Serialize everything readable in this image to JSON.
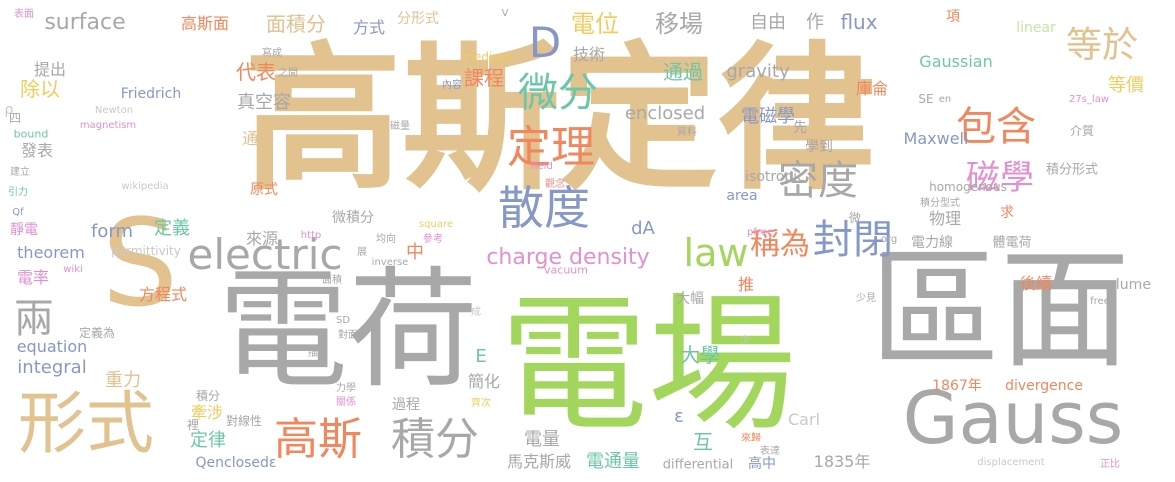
{
  "palette": {
    "tan": "#e2c28f",
    "gray": "#a8a8a8",
    "green": "#a3d65c",
    "blue": "#8698c6",
    "orange": "#f2875d",
    "teal": "#6cc7a9",
    "pink": "#e38fd0",
    "yellow": "#f3cc5e",
    "red": "#ef8b8b",
    "lgray": "#c9c9c9",
    "lgreen": "#c6e6a0"
  },
  "words": [
    {
      "text": "高斯定律",
      "color": "tan"
    },
    {
      "text": "電場",
      "color": "green"
    },
    {
      "text": "電荷",
      "color": "gray"
    },
    {
      "text": "區面",
      "color": "gray"
    },
    {
      "text": "S",
      "color": "tan"
    },
    {
      "text": "Gauss",
      "color": "gray"
    },
    {
      "text": "形式",
      "color": "tan"
    },
    {
      "text": "electric",
      "color": "gray"
    },
    {
      "text": "law",
      "color": "green"
    },
    {
      "text": "散度",
      "color": "blue"
    },
    {
      "text": "定理",
      "color": "orange"
    },
    {
      "text": "微分",
      "color": "teal"
    },
    {
      "text": "D",
      "color": "blue"
    },
    {
      "text": "密度",
      "color": "gray"
    },
    {
      "text": "封閉",
      "color": "blue"
    },
    {
      "text": "包含",
      "color": "orange"
    },
    {
      "text": "磁學",
      "color": "pink"
    },
    {
      "text": "等於",
      "color": "tan"
    },
    {
      "text": "高斯",
      "color": "orange"
    },
    {
      "text": "積分",
      "color": "gray"
    },
    {
      "text": "charge density",
      "color": "pink"
    },
    {
      "text": "稱為",
      "color": "orange"
    },
    {
      "text": "電位",
      "color": "yellow"
    },
    {
      "text": "移場",
      "color": "gray"
    },
    {
      "text": "兩",
      "color": "gray"
    },
    {
      "text": "surface",
      "color": "gray"
    },
    {
      "text": "高斯面",
      "color": "orange"
    },
    {
      "text": "面積分",
      "color": "tan"
    },
    {
      "text": "方式",
      "color": "blue"
    },
    {
      "text": "分形式",
      "color": "tan"
    },
    {
      "text": "技術",
      "color": "gray"
    },
    {
      "text": "自由",
      "color": "gray"
    },
    {
      "text": "作",
      "color": "gray"
    },
    {
      "text": "flux",
      "color": "blue"
    },
    {
      "text": "項",
      "color": "orange"
    },
    {
      "text": "linear",
      "color": "lgreen"
    },
    {
      "text": "Gaussian",
      "color": "teal"
    },
    {
      "text": "等價",
      "color": "yellow"
    },
    {
      "text": "庫侖",
      "color": "orange"
    },
    {
      "text": "通過",
      "color": "teal"
    },
    {
      "text": "gravity",
      "color": "gray"
    },
    {
      "text": "課程",
      "color": "orange"
    },
    {
      "text": "電磁學",
      "color": "blue"
    },
    {
      "text": "Maxwell",
      "color": "blue"
    },
    {
      "text": "介質",
      "color": "gray"
    },
    {
      "text": "先",
      "color": "gray"
    },
    {
      "text": "學到",
      "color": "gray"
    },
    {
      "text": "積分形式",
      "color": "gray"
    },
    {
      "text": "enclosed",
      "color": "gray"
    },
    {
      "text": "代表",
      "color": "orange"
    },
    {
      "text": "真空容",
      "color": "gray"
    },
    {
      "text": "除以",
      "color": "yellow"
    },
    {
      "text": "提出",
      "color": "gray"
    },
    {
      "text": "Friedrich",
      "color": "blue"
    },
    {
      "text": "通量",
      "color": "tan"
    },
    {
      "text": "發表",
      "color": "gray"
    },
    {
      "text": "form",
      "color": "blue"
    },
    {
      "text": "定義",
      "color": "teal"
    },
    {
      "text": "theorem",
      "color": "blue"
    },
    {
      "text": "電率",
      "color": "pink"
    },
    {
      "text": "來源",
      "color": "gray"
    },
    {
      "text": "微積分",
      "color": "gray"
    },
    {
      "text": "原式",
      "color": "orange"
    },
    {
      "text": "物理",
      "color": "gray"
    },
    {
      "text": "求",
      "color": "orange"
    },
    {
      "text": "電力線",
      "color": "gray"
    },
    {
      "text": "體電荷",
      "color": "gray"
    },
    {
      "text": "homogenous",
      "color": "gray"
    },
    {
      "text": "isotropic",
      "color": "gray"
    },
    {
      "text": "area",
      "color": "blue"
    },
    {
      "text": "dA",
      "color": "blue"
    },
    {
      "text": "中",
      "color": "orange"
    },
    {
      "text": "推",
      "color": "orange"
    },
    {
      "text": "大學",
      "color": "teal"
    },
    {
      "text": "大幅",
      "color": "gray"
    },
    {
      "text": "後續",
      "color": "orange"
    },
    {
      "text": "volume",
      "color": "gray"
    },
    {
      "text": "equation",
      "color": "blue"
    },
    {
      "text": "integral",
      "color": "blue"
    },
    {
      "text": "方程式",
      "color": "orange"
    },
    {
      "text": "定義為",
      "color": "gray"
    },
    {
      "text": "重力",
      "color": "tan"
    },
    {
      "text": "E",
      "color": "teal"
    },
    {
      "text": "簡化",
      "color": "gray"
    },
    {
      "text": "1867年",
      "color": "orange"
    },
    {
      "text": "divergence",
      "color": "orange"
    },
    {
      "text": "積分",
      "color": "gray"
    },
    {
      "text": "牽涉",
      "color": "yellow"
    },
    {
      "text": "定律",
      "color": "teal"
    },
    {
      "text": "電量",
      "color": "gray"
    },
    {
      "text": "過程",
      "color": "gray"
    },
    {
      "text": "ε",
      "color": "blue"
    },
    {
      "text": "互",
      "color": "teal"
    },
    {
      "text": "Carl",
      "color": "lgray"
    },
    {
      "text": "電通量",
      "color": "teal"
    },
    {
      "text": "馬克斯威",
      "color": "gray"
    },
    {
      "text": "Qenclosedε",
      "color": "blue"
    },
    {
      "text": "differential",
      "color": "gray"
    },
    {
      "text": "高中",
      "color": "blue"
    },
    {
      "text": "1835年",
      "color": "gray"
    },
    {
      "text": "裡",
      "color": "gray"
    },
    {
      "text": "對線性",
      "color": "gray"
    },
    {
      "text": "表面",
      "color": "pink"
    },
    {
      "text": "寫成",
      "color": "gray"
    },
    {
      "text": "medium",
      "color": "yellow"
    },
    {
      "text": "之間",
      "color": "gray"
    },
    {
      "text": "內容",
      "color": "blue"
    },
    {
      "text": "Newton",
      "color": "lgray"
    },
    {
      "text": "magnetism",
      "color": "pink"
    },
    {
      "text": "四",
      "color": "gray"
    },
    {
      "text": "bound",
      "color": "teal"
    },
    {
      "text": "ρ",
      "color": "lgray"
    },
    {
      "text": "建立",
      "color": "gray"
    },
    {
      "text": "引力",
      "color": "teal"
    },
    {
      "text": "Qf",
      "color": "blue"
    },
    {
      "text": "靜電",
      "color": "pink"
    },
    {
      "text": "permittivity",
      "color": "lgray"
    },
    {
      "text": "wiki",
      "color": "pink"
    },
    {
      "text": "wikipedia",
      "color": "lgray"
    },
    {
      "text": "http",
      "color": "pink"
    },
    {
      "text": "參考",
      "color": "pink"
    },
    {
      "text": "均向",
      "color": "gray"
    },
    {
      "text": "inverse",
      "color": "gray"
    },
    {
      "text": "square",
      "color": "yellow"
    },
    {
      "text": "vacuum",
      "color": "pink"
    },
    {
      "text": "面積",
      "color": "gray"
    },
    {
      "text": "field",
      "color": "pink"
    },
    {
      "text": "觀念",
      "color": "red"
    },
    {
      "text": "資料",
      "color": "gray"
    },
    {
      "text": "SE",
      "color": "gray"
    },
    {
      "text": "en",
      "color": "gray"
    },
    {
      "text": "27s_law",
      "color": "pink"
    },
    {
      "text": "磁量",
      "color": "gray"
    },
    {
      "text": "提及",
      "color": "tan"
    },
    {
      "text": "積分型式",
      "color": "gray"
    },
    {
      "text": "微",
      "color": "gray"
    },
    {
      "text": "org",
      "color": "gray"
    },
    {
      "text": "pfree",
      "color": "pink"
    },
    {
      "text": "少",
      "color": "lgray"
    },
    {
      "text": "少見",
      "color": "gray"
    },
    {
      "text": "free",
      "color": "gray"
    },
    {
      "text": "SD",
      "color": "gray"
    },
    {
      "text": "對面",
      "color": "gray"
    },
    {
      "text": "成",
      "color": "lgray"
    },
    {
      "text": "描述",
      "color": "gray"
    },
    {
      "text": "力學",
      "color": "gray"
    },
    {
      "text": "關係",
      "color": "pink"
    },
    {
      "text": "齊次",
      "color": "yellow"
    },
    {
      "text": "來歸",
      "color": "orange"
    },
    {
      "text": "表達",
      "color": "gray"
    },
    {
      "text": "displacement",
      "color": "lgray"
    },
    {
      "text": "正比",
      "color": "pink"
    },
    {
      "text": "V",
      "color": "gray"
    },
    {
      "text": "展",
      "color": "gray"
    }
  ]
}
